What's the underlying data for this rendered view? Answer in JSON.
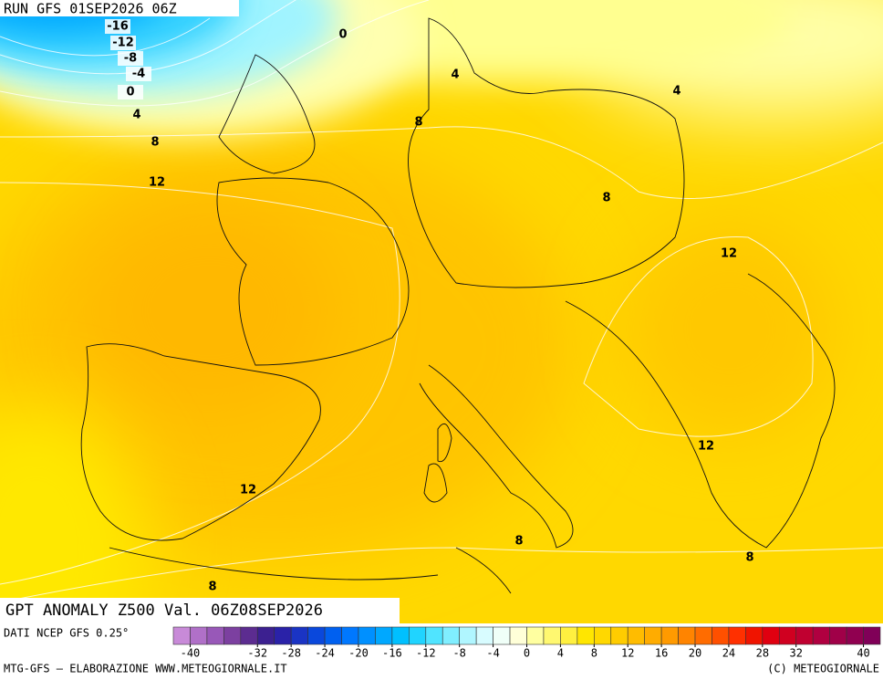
{
  "header": {
    "run": "RUN GFS 01SEP2026 06Z"
  },
  "contour_labels": [
    -16,
    -12,
    -8,
    -4,
    0,
    4,
    8,
    12,
    0,
    4,
    8,
    4,
    8,
    12,
    12,
    12,
    8,
    8,
    8
  ],
  "title": "GPT ANOMALY Z500 Val. 06Z08SEP2026",
  "source": "DATI NCEP GFS 0.25°",
  "colorbar": {
    "lim": [
      -42,
      42
    ],
    "ticks": [
      -40,
      -32,
      -28,
      -24,
      -20,
      -16,
      -12,
      -8,
      -4,
      0,
      4,
      8,
      12,
      16,
      20,
      24,
      28,
      32,
      40
    ],
    "colors": [
      "#c88ad8",
      "#b070c8",
      "#9858b8",
      "#7c40a0",
      "#5c2c90",
      "#3c2090",
      "#2a22a8",
      "#1a34c4",
      "#0a48dc",
      "#0060f0",
      "#0078ff",
      "#0090ff",
      "#00a8ff",
      "#00c0ff",
      "#20d4ff",
      "#50e4ff",
      "#80eeff",
      "#b0f6ff",
      "#d8fcff",
      "#f0fff8",
      "#ffffd8",
      "#ffffa0",
      "#fff870",
      "#fff040",
      "#ffe600",
      "#ffd800",
      "#ffcc00",
      "#ffbc00",
      "#ffac00",
      "#ff9a00",
      "#ff8400",
      "#ff6c00",
      "#ff5000",
      "#ff3000",
      "#f01400",
      "#e00010",
      "#d00020",
      "#c00030",
      "#b00040",
      "#a00048",
      "#900050",
      "#800058"
    ]
  },
  "footer": {
    "left": "MTG-GFS — ELABORAZIONE WWW.METEOGIORNALE.IT",
    "right": "(C) METEOGIORNALE"
  }
}
